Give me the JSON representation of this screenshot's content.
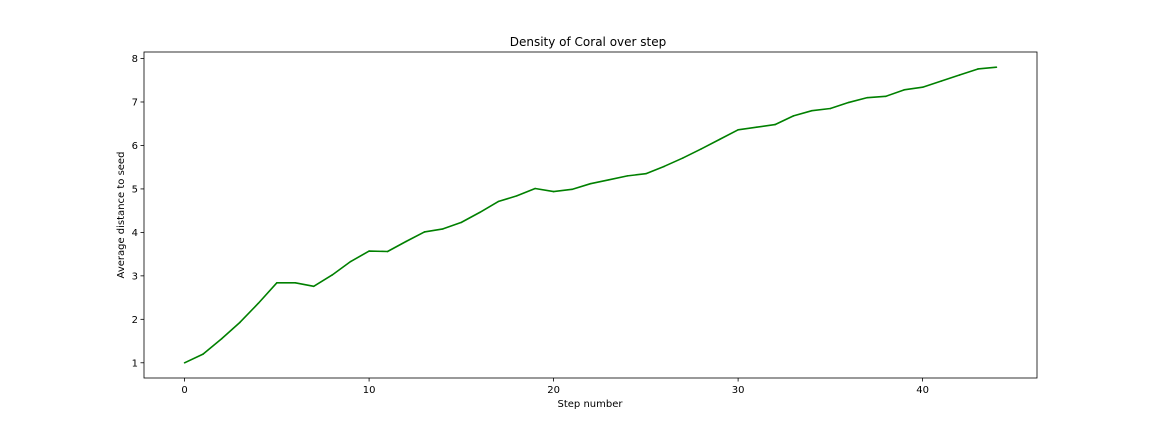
{
  "chart_data": {
    "type": "line",
    "title": "Density of Coral over step",
    "xlabel": "Step number",
    "ylabel": "Average distance to seed",
    "xlim": [
      -2.2,
      46.2
    ],
    "ylim": [
      0.65,
      8.15
    ],
    "xticks": [
      0,
      10,
      20,
      30,
      40
    ],
    "yticks": [
      1,
      2,
      3,
      4,
      5,
      6,
      7,
      8
    ],
    "grid": false,
    "series": [
      {
        "color": "#008000",
        "x": [
          0,
          1,
          2,
          3,
          4,
          5,
          6,
          7,
          8,
          9,
          10,
          11,
          12,
          13,
          14,
          15,
          16,
          17,
          18,
          19,
          20,
          21,
          22,
          23,
          24,
          25,
          26,
          27,
          28,
          29,
          30,
          31,
          32,
          33,
          34,
          35,
          36,
          37,
          38,
          39,
          40,
          41,
          42,
          43,
          44
        ],
        "y": [
          1.0,
          1.2,
          1.55,
          1.93,
          2.37,
          2.84,
          2.84,
          2.76,
          3.02,
          3.33,
          3.57,
          3.56,
          3.79,
          4.01,
          4.08,
          4.23,
          4.46,
          4.71,
          4.84,
          5.01,
          4.94,
          4.99,
          5.12,
          5.21,
          5.3,
          5.35,
          5.52,
          5.71,
          5.92,
          6.14,
          6.36,
          6.42,
          6.48,
          6.68,
          6.8,
          6.85,
          6.99,
          7.1,
          7.13,
          7.28,
          7.34,
          7.48,
          7.62,
          7.76,
          7.8
        ]
      }
    ]
  }
}
